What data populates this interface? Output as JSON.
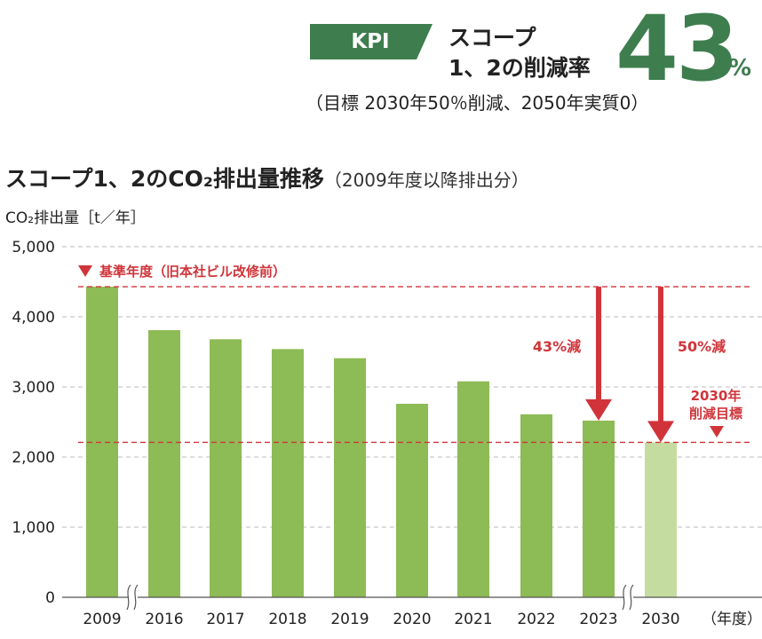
{
  "kpi": {
    "tag": "KPI",
    "label_line1": "スコープ",
    "label_line2": "1、2の削減率",
    "value": "43",
    "unit": "%",
    "target": "（目標 2030年50％削減、2050年実質0）"
  },
  "chart_title": {
    "main": "スコープ1、2のCO₂排出量推移",
    "sub": "（2009年度以降排出分）"
  },
  "y_axis_unit": "CO₂排出量［t／年］",
  "x_axis_unit": "（年度）",
  "colors": {
    "bar": "#8dbb55",
    "target_bar": "#c5dca0",
    "accent_red": "#d0343a",
    "kpi_green": "#3e7d4e",
    "grid": "#bbbbbb"
  },
  "chart_data": {
    "type": "bar",
    "categories": [
      "2009",
      "2016",
      "2017",
      "2018",
      "2019",
      "2020",
      "2021",
      "2022",
      "2023",
      "2030"
    ],
    "values": [
      4430,
      3810,
      3680,
      3540,
      3410,
      2760,
      3080,
      2610,
      2520,
      2210
    ],
    "ylim": [
      0,
      5000
    ],
    "yticks": [
      "0",
      "1,000",
      "2,000",
      "3,000",
      "4,000",
      "5,000"
    ],
    "grid": true,
    "axis_breaks_after": [
      "2009",
      "2023"
    ],
    "annotations": {
      "baseline_label": "基準年度（旧本社ビル改修前）",
      "reduction_2023": "43%減",
      "reduction_2030": "50%減",
      "target_label_line1": "2030年",
      "target_label_line2": "削減目標"
    }
  }
}
